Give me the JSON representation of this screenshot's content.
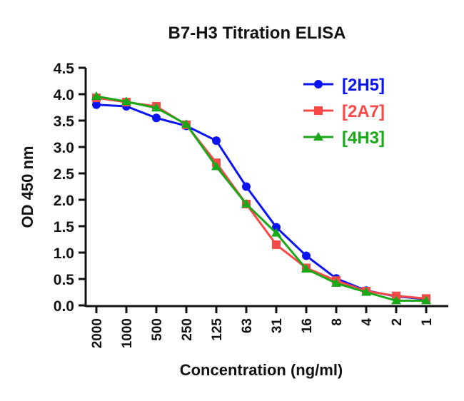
{
  "chart_data": {
    "type": "line",
    "title": "B7-H3 Titration ELISA",
    "xlabel": "Concentration (ng/ml)",
    "ylabel": "OD 450 nm",
    "categories": [
      "2000",
      "1000",
      "500",
      "250",
      "125",
      "63",
      "31",
      "16",
      "8",
      "4",
      "2",
      "1"
    ],
    "ylim": [
      0,
      4.5
    ],
    "yticks": [
      "0.0",
      "0.5",
      "1.0",
      "1.5",
      "2.0",
      "2.5",
      "3.0",
      "3.5",
      "4.0",
      "4.5"
    ],
    "grid": false,
    "legend_position": "top-right",
    "series": [
      {
        "name": "[2H5]",
        "color": "#0a14f0",
        "marker": "circle",
        "values": [
          3.8,
          3.77,
          3.55,
          3.4,
          3.12,
          2.25,
          1.48,
          0.94,
          0.51,
          0.28,
          0.17,
          0.12
        ]
      },
      {
        "name": "[2A7]",
        "color": "#f84848",
        "marker": "square",
        "values": [
          3.93,
          3.85,
          3.77,
          3.42,
          2.7,
          1.92,
          1.15,
          0.71,
          0.47,
          0.27,
          0.18,
          0.13
        ]
      },
      {
        "name": "[4H3]",
        "color": "#18a818",
        "marker": "triangle",
        "values": [
          3.96,
          3.86,
          3.74,
          3.43,
          2.63,
          1.92,
          1.37,
          0.69,
          0.42,
          0.25,
          0.09,
          0.09
        ]
      }
    ]
  }
}
